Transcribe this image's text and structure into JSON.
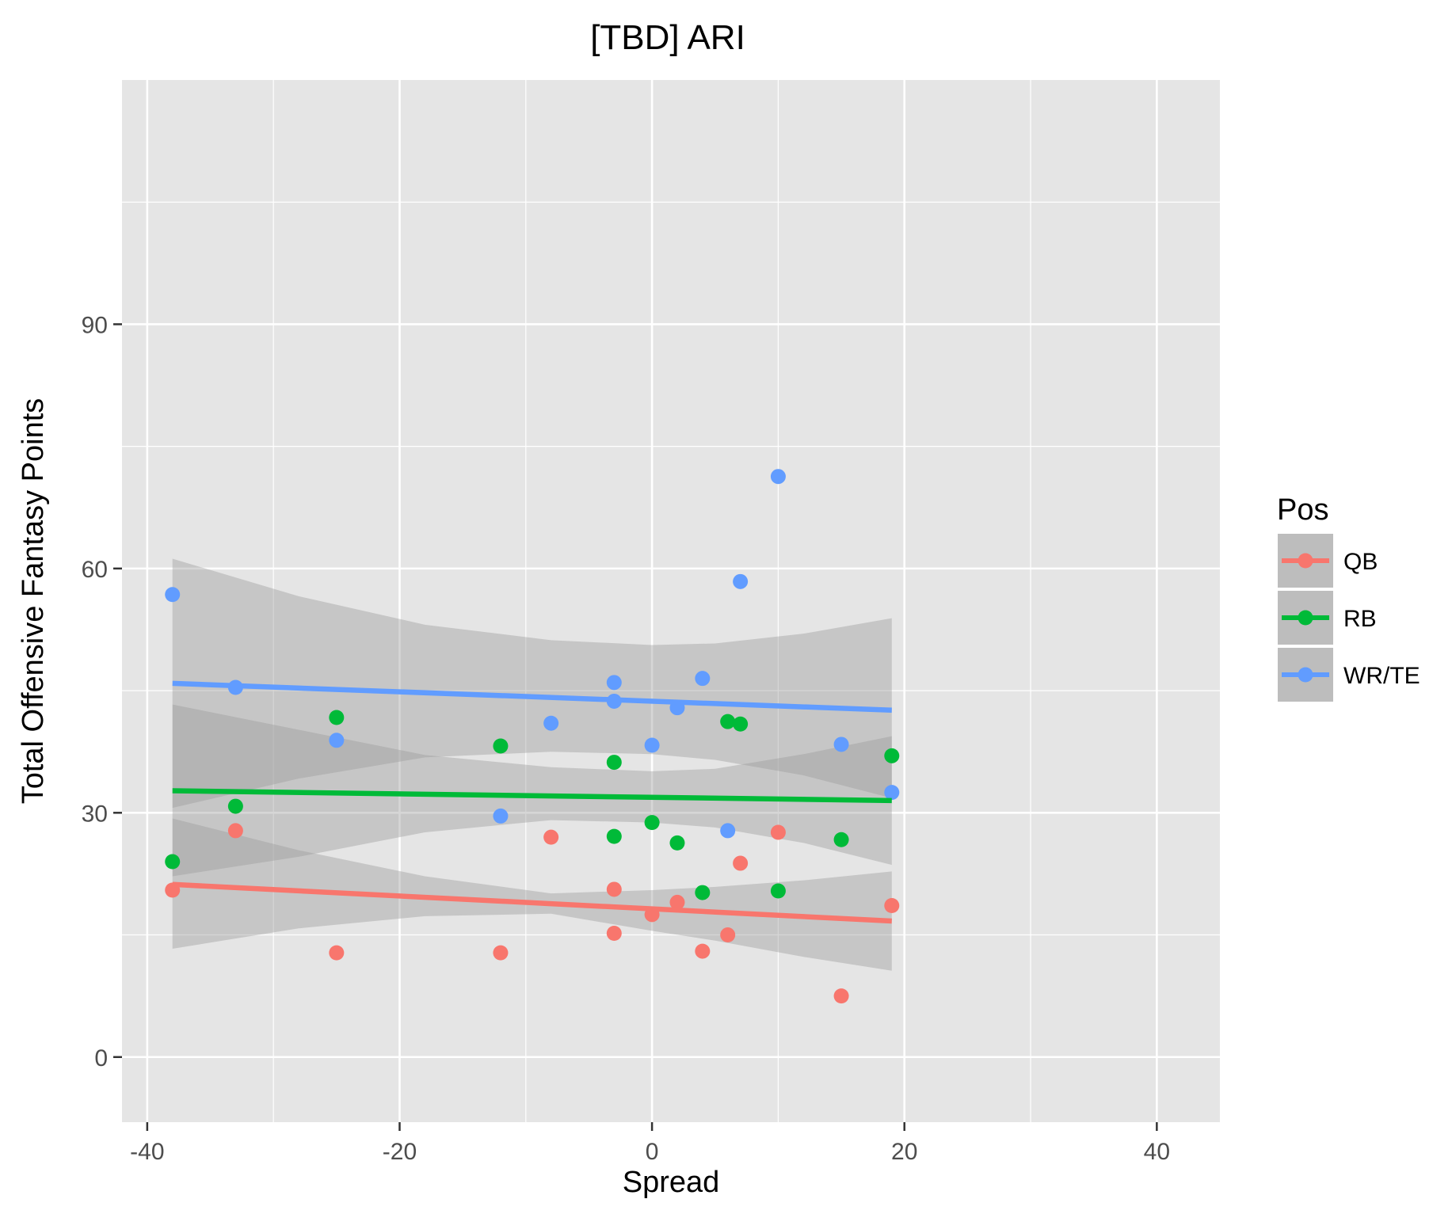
{
  "chart_data": {
    "type": "scatter",
    "title": "[TBD] ARI",
    "xlabel": "Spread",
    "ylabel": "Total Offensive Fantasy Points",
    "xlim": [
      -42,
      45
    ],
    "ylim": [
      -8,
      120
    ],
    "x_ticks": [
      -40,
      -20,
      0,
      20,
      40
    ],
    "x_tick_labels": [
      "-40",
      "-20",
      "0",
      "20",
      "40"
    ],
    "y_ticks": [
      0,
      30,
      60,
      90
    ],
    "y_tick_labels": [
      "0",
      "30",
      "60",
      "90"
    ],
    "grid": true,
    "background_color": "#e5e5e5",
    "grid_color": "#ffffff",
    "ribbon_color": "#999999",
    "legend_title": "Pos",
    "legend_position": "right",
    "trend": "linear fit with confidence band",
    "series": [
      {
        "name": "QB",
        "color": "#f8766d",
        "points": [
          {
            "x": -38,
            "y": 20.5
          },
          {
            "x": -33,
            "y": 27.8
          },
          {
            "x": -25,
            "y": 12.8
          },
          {
            "x": -12,
            "y": 12.8
          },
          {
            "x": -8,
            "y": 27.0
          },
          {
            "x": -3,
            "y": 20.6
          },
          {
            "x": -3,
            "y": 15.2
          },
          {
            "x": 0,
            "y": 17.5
          },
          {
            "x": 2,
            "y": 19.0
          },
          {
            "x": 4,
            "y": 13.0
          },
          {
            "x": 6,
            "y": 15.0
          },
          {
            "x": 7,
            "y": 23.8
          },
          {
            "x": 10,
            "y": 27.6
          },
          {
            "x": 15,
            "y": 7.5
          },
          {
            "x": 19,
            "y": 18.6
          }
        ],
        "fit": {
          "x": [
            -38,
            19
          ],
          "y": [
            21.2,
            16.7
          ]
        },
        "band": [
          {
            "x": -38,
            "lo": 13.3,
            "hi": 29.3
          },
          {
            "x": -28,
            "lo": 15.8,
            "hi": 25.4
          },
          {
            "x": -18,
            "lo": 17.3,
            "hi": 22.2
          },
          {
            "x": -8,
            "lo": 17.6,
            "hi": 20.1
          },
          {
            "x": 0,
            "lo": 15.5,
            "hi": 20.5
          },
          {
            "x": 5,
            "lo": 14.3,
            "hi": 20.9
          },
          {
            "x": 12,
            "lo": 12.3,
            "hi": 21.7
          },
          {
            "x": 19,
            "lo": 10.6,
            "hi": 22.8
          }
        ]
      },
      {
        "name": "RB",
        "color": "#00ba38",
        "points": [
          {
            "x": -38,
            "y": 24.0
          },
          {
            "x": -33,
            "y": 30.8
          },
          {
            "x": -25,
            "y": 41.7
          },
          {
            "x": -12,
            "y": 38.2
          },
          {
            "x": -3,
            "y": 36.2
          },
          {
            "x": -3,
            "y": 27.1
          },
          {
            "x": 0,
            "y": 28.8
          },
          {
            "x": 2,
            "y": 26.3
          },
          {
            "x": 4,
            "y": 20.2
          },
          {
            "x": 6,
            "y": 41.2
          },
          {
            "x": 7,
            "y": 40.9
          },
          {
            "x": 10,
            "y": 20.4
          },
          {
            "x": 15,
            "y": 26.7
          },
          {
            "x": 19,
            "y": 37.0
          }
        ],
        "fit": {
          "x": [
            -38,
            19
          ],
          "y": [
            32.7,
            31.5
          ]
        },
        "band": [
          {
            "x": -38,
            "lo": 22.2,
            "hi": 43.3
          },
          {
            "x": -28,
            "lo": 24.6,
            "hi": 40.2
          },
          {
            "x": -18,
            "lo": 27.6,
            "hi": 37.1
          },
          {
            "x": -8,
            "lo": 29.1,
            "hi": 35.6
          },
          {
            "x": 0,
            "lo": 28.8,
            "hi": 35.1
          },
          {
            "x": 5,
            "lo": 28.2,
            "hi": 35.4
          },
          {
            "x": 12,
            "lo": 26.3,
            "hi": 37.2
          },
          {
            "x": 19,
            "lo": 23.6,
            "hi": 39.4
          }
        ]
      },
      {
        "name": "WR/TE",
        "color": "#619cff",
        "points": [
          {
            "x": -38,
            "y": 56.8
          },
          {
            "x": -33,
            "y": 45.4
          },
          {
            "x": -25,
            "y": 38.9
          },
          {
            "x": -12,
            "y": 29.6
          },
          {
            "x": -8,
            "y": 41.0
          },
          {
            "x": -3,
            "y": 46.0
          },
          {
            "x": -3,
            "y": 43.7
          },
          {
            "x": 0,
            "y": 38.3
          },
          {
            "x": 2,
            "y": 42.9
          },
          {
            "x": 4,
            "y": 46.5
          },
          {
            "x": 6,
            "y": 27.8
          },
          {
            "x": 7,
            "y": 58.4
          },
          {
            "x": 10,
            "y": 71.3
          },
          {
            "x": 15,
            "y": 38.4
          },
          {
            "x": 19,
            "y": 32.5
          }
        ],
        "fit": {
          "x": [
            -38,
            19
          ],
          "y": [
            45.9,
            42.6
          ]
        },
        "band": [
          {
            "x": -38,
            "lo": 30.6,
            "hi": 61.2
          },
          {
            "x": -28,
            "lo": 34.2,
            "hi": 56.6
          },
          {
            "x": -18,
            "lo": 36.8,
            "hi": 53.1
          },
          {
            "x": -8,
            "lo": 37.5,
            "hi": 51.2
          },
          {
            "x": 0,
            "lo": 37.2,
            "hi": 50.6
          },
          {
            "x": 5,
            "lo": 36.5,
            "hi": 50.8
          },
          {
            "x": 12,
            "lo": 34.6,
            "hi": 52.0
          },
          {
            "x": 19,
            "lo": 31.8,
            "hi": 53.9
          }
        ]
      }
    ]
  }
}
